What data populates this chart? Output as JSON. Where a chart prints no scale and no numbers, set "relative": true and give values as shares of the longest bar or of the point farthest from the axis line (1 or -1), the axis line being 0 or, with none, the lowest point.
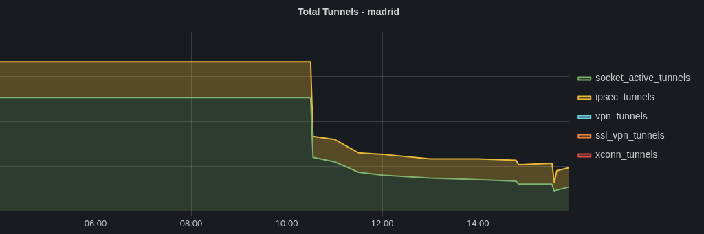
{
  "chart_data": {
    "type": "area",
    "title": "Total Tunnels - madrid",
    "stacked": true,
    "relative": true,
    "grid": true,
    "legend": "right",
    "xlim": [
      4,
      15.9
    ],
    "xticks": [
      {
        "value": 6,
        "label": "06:00"
      },
      {
        "value": 8,
        "label": "08:00"
      },
      {
        "value": 10,
        "label": "10:00"
      },
      {
        "value": 12,
        "label": "12:00"
      },
      {
        "value": 14,
        "label": "14:00"
      }
    ],
    "x": [
      4,
      10.5,
      10.55,
      11,
      11.5,
      12,
      13,
      14,
      14.8,
      14.85,
      15.55,
      15.6,
      15.65,
      15.9
    ],
    "series": [
      {
        "name": "socket_active_tunnels",
        "color": "#7eb26d",
        "values": [
          0.76,
          0.76,
          0.36,
          0.33,
          0.26,
          0.24,
          0.22,
          0.21,
          0.2,
          0.18,
          0.18,
          0.13,
          0.14,
          0.16
        ]
      },
      {
        "name": "ipsec_tunnels",
        "color": "#eab839",
        "values": [
          0.24,
          0.24,
          0.14,
          0.15,
          0.13,
          0.14,
          0.13,
          0.14,
          0.14,
          0.13,
          0.14,
          0.06,
          0.13,
          0.13
        ]
      },
      {
        "name": "vpn_tunnels",
        "color": "#6ed0e0",
        "values": [
          null,
          null,
          null,
          null,
          null,
          null,
          null,
          null,
          null,
          null,
          null,
          null,
          null,
          null
        ]
      },
      {
        "name": "ssl_vpn_tunnels",
        "color": "#ef843c",
        "values": [
          null,
          null,
          null,
          null,
          null,
          null,
          null,
          null,
          null,
          null,
          null,
          null,
          null,
          null
        ]
      },
      {
        "name": "xconn_tunnels",
        "color": "#e24d42",
        "values": [
          null,
          null,
          null,
          null,
          null,
          null,
          null,
          null,
          null,
          null,
          null,
          null,
          null,
          null
        ]
      }
    ]
  }
}
